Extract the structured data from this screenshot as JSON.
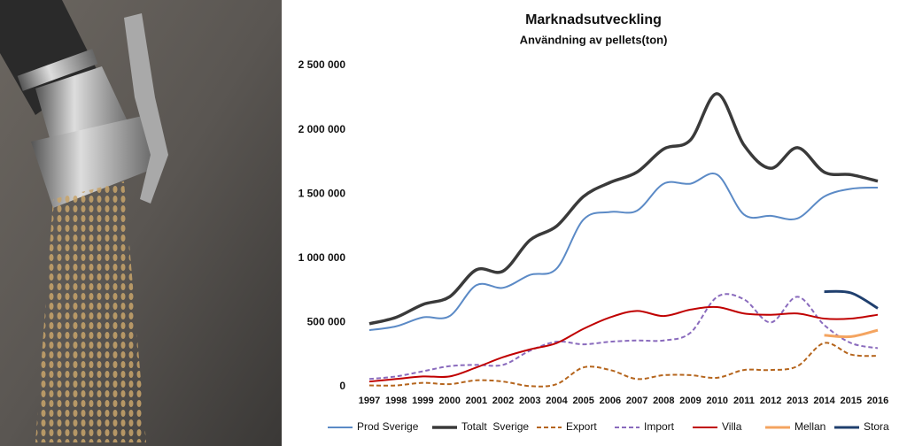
{
  "chart_data": {
    "type": "line",
    "title": "Marknadsutveckling",
    "subtitle": "Användning av pellets(ton)",
    "categories": [
      "1997",
      "1998",
      "1999",
      "2000",
      "2001",
      "2002",
      "2003",
      "2004",
      "2005",
      "2006",
      "2007",
      "2008",
      "2009",
      "2010",
      "2011",
      "2012",
      "2013",
      "2014",
      "2015",
      "2016"
    ],
    "ylim": [
      0,
      2500000
    ],
    "yticks": [
      0,
      {
        "value": 500000,
        "label": "500 000"
      },
      {
        "value": 1000000,
        "label": "1 000 000"
      },
      {
        "value": 1500000,
        "label": "1 500 000"
      },
      {
        "value": 2000000,
        "label": "2 000 000"
      },
      {
        "value": 2500000,
        "label": "2 500 000"
      }
    ],
    "series": [
      {
        "name": "Prod Sverige",
        "color": "#5b8ac6",
        "width": 2,
        "values": [
          440000,
          470000,
          540000,
          550000,
          790000,
          770000,
          870000,
          920000,
          1300000,
          1360000,
          1370000,
          1580000,
          1580000,
          1650000,
          1340000,
          1330000,
          1310000,
          1480000,
          1540000,
          1550000
        ]
      },
      {
        "name": "Totalt  Sverige",
        "color": "#3a3a3a",
        "width": 3.5,
        "values": [
          490000,
          540000,
          640000,
          700000,
          910000,
          900000,
          1140000,
          1250000,
          1480000,
          1590000,
          1670000,
          1850000,
          1920000,
          2280000,
          1880000,
          1700000,
          1860000,
          1670000,
          1650000,
          1600000
        ]
      },
      {
        "name": "Export",
        "color": "#b5651d",
        "width": 2,
        "dashed": true,
        "values": [
          10000,
          10000,
          30000,
          20000,
          50000,
          40000,
          5000,
          20000,
          150000,
          130000,
          60000,
          90000,
          90000,
          70000,
          130000,
          130000,
          160000,
          340000,
          250000,
          240000
        ]
      },
      {
        "name": "Import",
        "color": "#8a6bbd",
        "width": 2,
        "dashed": true,
        "values": [
          60000,
          80000,
          120000,
          160000,
          170000,
          170000,
          280000,
          350000,
          330000,
          350000,
          360000,
          360000,
          420000,
          700000,
          680000,
          500000,
          700000,
          480000,
          340000,
          300000
        ]
      },
      {
        "name": "Villa",
        "color": "#c00000",
        "width": 2,
        "values": [
          40000,
          60000,
          80000,
          80000,
          150000,
          230000,
          290000,
          340000,
          450000,
          540000,
          590000,
          550000,
          600000,
          620000,
          570000,
          560000,
          570000,
          530000,
          530000,
          560000
        ]
      },
      {
        "name": "Mellan",
        "color": "#f4a460",
        "width": 3,
        "values": [
          null,
          null,
          null,
          null,
          null,
          null,
          null,
          null,
          null,
          null,
          null,
          null,
          null,
          null,
          null,
          null,
          null,
          400000,
          390000,
          440000
        ]
      },
      {
        "name": "Stora",
        "color": "#1f3f6e",
        "width": 3,
        "values": [
          null,
          null,
          null,
          null,
          null,
          null,
          null,
          null,
          null,
          null,
          null,
          null,
          null,
          null,
          null,
          null,
          null,
          740000,
          730000,
          610000
        ]
      }
    ]
  }
}
